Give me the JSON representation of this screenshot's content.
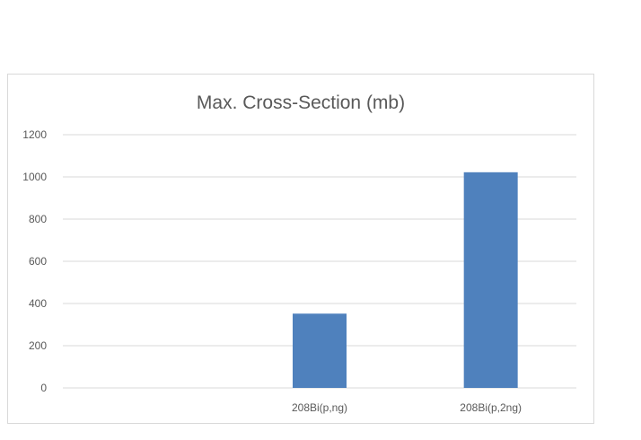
{
  "chart_data": {
    "type": "bar",
    "title": "Max. Cross-Section (mb)",
    "xlabel": "",
    "ylabel": "",
    "categories": [
      "",
      "208Bi(p,ng)",
      "208Bi(p,2ng)"
    ],
    "values": [
      0,
      352,
      1022
    ],
    "ylim": [
      0,
      1200
    ],
    "yticks": [
      0,
      200,
      400,
      600,
      800,
      1000,
      1200
    ],
    "grid": true,
    "legend": "none",
    "bar_color": "#4f81bd",
    "grid_color": "#d9d9d9"
  }
}
